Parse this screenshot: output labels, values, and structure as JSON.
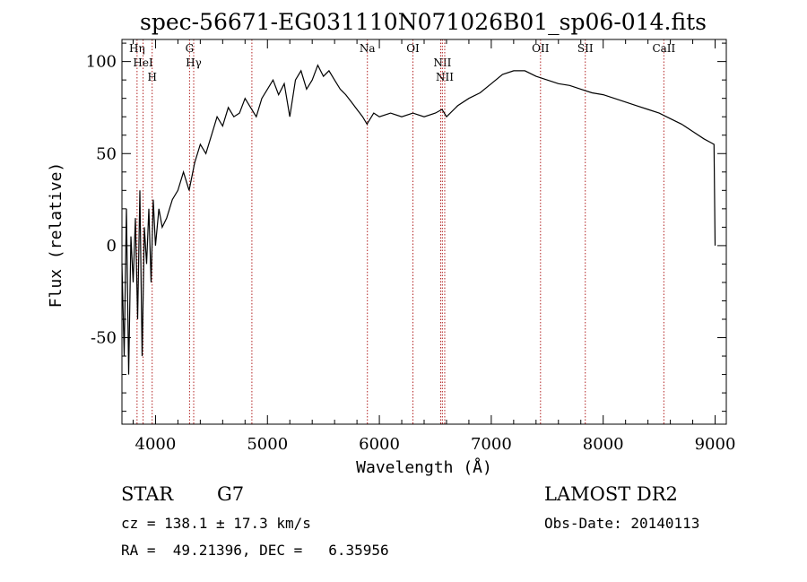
{
  "chart_data": {
    "type": "line",
    "title": "spec-56671-EG031110N071026B01_sp06-014.fits",
    "xlabel": "Wavelength (Å)",
    "ylabel": "Flux (relative)",
    "xlim": [
      3700,
      9100
    ],
    "ylim": [
      -97,
      112
    ],
    "xticks": [
      4000,
      5000,
      6000,
      7000,
      8000,
      9000
    ],
    "yticks": [
      -50,
      0,
      50,
      100
    ],
    "grid": false,
    "series": [
      {
        "color": "#000000",
        "x": [
          3700,
          3720,
          3740,
          3760,
          3780,
          3800,
          3820,
          3840,
          3860,
          3880,
          3900,
          3920,
          3940,
          3960,
          3980,
          4000,
          4030,
          4060,
          4100,
          4150,
          4200,
          4250,
          4300,
          4350,
          4400,
          4450,
          4500,
          4550,
          4600,
          4650,
          4700,
          4750,
          4800,
          4850,
          4900,
          4950,
          5000,
          5050,
          5100,
          5150,
          5200,
          5250,
          5300,
          5350,
          5400,
          5450,
          5500,
          5550,
          5600,
          5650,
          5700,
          5750,
          5800,
          5850,
          5890,
          5950,
          6000,
          6100,
          6200,
          6300,
          6400,
          6500,
          6560,
          6600,
          6700,
          6800,
          6900,
          7000,
          7100,
          7200,
          7300,
          7400,
          7500,
          7600,
          7700,
          7800,
          7900,
          8000,
          8100,
          8200,
          8300,
          8400,
          8500,
          8600,
          8700,
          8800,
          8900,
          8960,
          8990,
          9000
        ],
        "y": [
          -10,
          -60,
          20,
          -70,
          5,
          -20,
          15,
          -40,
          30,
          -60,
          10,
          -10,
          20,
          -20,
          25,
          0,
          20,
          10,
          15,
          25,
          30,
          40,
          30,
          45,
          55,
          50,
          60,
          70,
          65,
          75,
          70,
          72,
          80,
          75,
          70,
          80,
          85,
          90,
          82,
          88,
          70,
          90,
          95,
          85,
          90,
          98,
          92,
          95,
          90,
          85,
          82,
          78,
          74,
          70,
          66,
          72,
          70,
          72,
          70,
          72,
          70,
          72,
          74,
          70,
          76,
          80,
          83,
          88,
          93,
          95,
          95,
          92,
          90,
          88,
          87,
          85,
          83,
          82,
          80,
          78,
          76,
          74,
          72,
          69,
          66,
          62,
          58,
          56,
          55,
          0
        ]
      }
    ],
    "lines": [
      {
        "x": 3835,
        "label": "Hη"
      },
      {
        "x": 3889,
        "label": "HeI"
      },
      {
        "x": 3970,
        "label": "H"
      },
      {
        "x": 4304,
        "label": "G"
      },
      {
        "x": 4341,
        "label": "Hγ"
      },
      {
        "x": 4861,
        "label": ""
      },
      {
        "x": 5893,
        "label": "Na"
      },
      {
        "x": 6300,
        "label": "OI"
      },
      {
        "x": 6548,
        "label": ""
      },
      {
        "x": 6563,
        "label": "NII"
      },
      {
        "x": 6584,
        "label": "NII"
      },
      {
        "x": 7440,
        "label": "OII"
      },
      {
        "x": 7840,
        "label": "SII"
      },
      {
        "x": 8542,
        "label": "CaII"
      }
    ]
  },
  "info": {
    "class": "STAR",
    "subclass": "G7",
    "survey": "LAMOST DR2",
    "cz": "cz = 138.1 ± 17.3 km/s",
    "obs_date": "Obs-Date: 20140113",
    "coords": "RA =  49.21396, DEC =   6.35956"
  }
}
